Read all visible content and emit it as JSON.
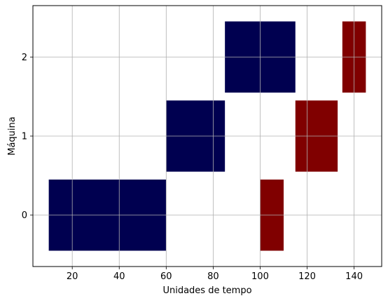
{
  "chart_data": {
    "type": "gantt",
    "xlabel": "Unidades de tempo",
    "ylabel": "Máquina",
    "xlim": [
      3.25,
      151.75
    ],
    "ylim": [
      -0.65,
      2.65
    ],
    "xticks": [
      20,
      40,
      60,
      80,
      100,
      120,
      140
    ],
    "xtick_labels": [
      "20",
      "40",
      "60",
      "80",
      "100",
      "120",
      "140"
    ],
    "yticks": [
      0,
      1,
      2
    ],
    "ytick_labels": [
      "0",
      "1",
      "2"
    ],
    "grid": true,
    "bar_height": 0.9,
    "colors": {
      "navy": "#000050",
      "darkred": "#800000",
      "grid": "#b0b0b0"
    },
    "tasks": [
      {
        "machine": 0,
        "start": 10,
        "end": 60,
        "color": "navy"
      },
      {
        "machine": 0,
        "start": 100,
        "end": 110,
        "color": "darkred"
      },
      {
        "machine": 1,
        "start": 60,
        "end": 85,
        "color": "navy"
      },
      {
        "machine": 1,
        "start": 115,
        "end": 133,
        "color": "darkred"
      },
      {
        "machine": 2,
        "start": 85,
        "end": 115,
        "color": "navy"
      },
      {
        "machine": 2,
        "start": 135,
        "end": 145,
        "color": "darkred"
      }
    ]
  }
}
